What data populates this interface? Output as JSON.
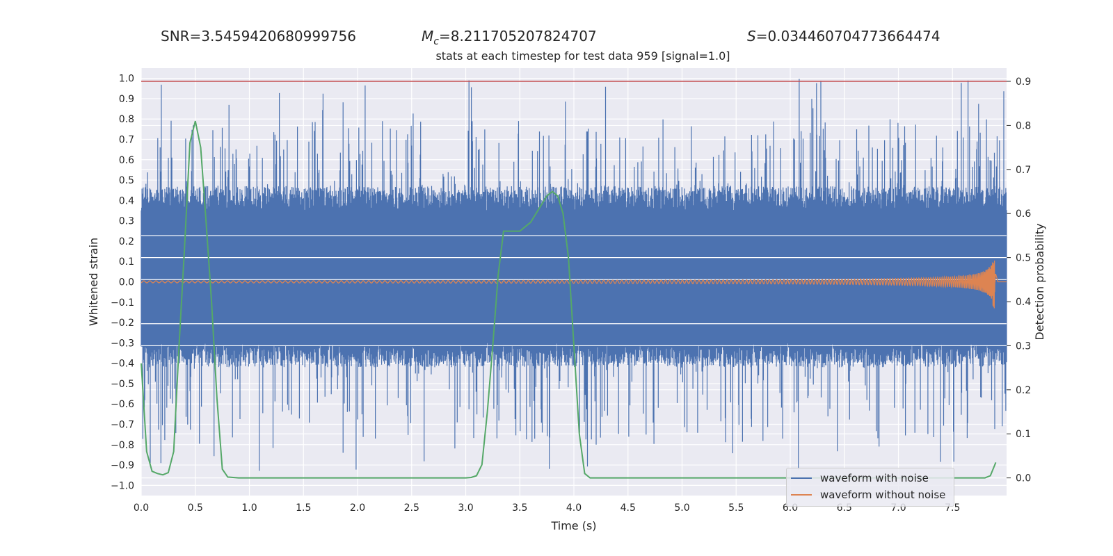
{
  "header": {
    "snr": "SNR=3.5459420680999756",
    "mc_symbol": "M",
    "mc_sub": "c",
    "mc_value": "=8.211705207824707",
    "s_symbol": "S",
    "s_value": "=0.034460704773664474"
  },
  "chart_data": {
    "type": "line",
    "subtitle": "stats at each timestep for test data 959 [signal=1.0]",
    "xlabel": "Time (s)",
    "ylabel_left": "Whitened strain",
    "ylabel_right": "Detection probability",
    "xlim": [
      0.0,
      8.0
    ],
    "ylim_left": [
      -1.05,
      1.05
    ],
    "ylim_right": [
      -0.04,
      0.93
    ],
    "x_ticks": [
      "0.0",
      "0.5",
      "1.0",
      "1.5",
      "2.0",
      "2.5",
      "3.0",
      "3.5",
      "4.0",
      "4.5",
      "5.0",
      "5.5",
      "6.0",
      "6.5",
      "7.0",
      "7.5"
    ],
    "y_left_ticks": [
      "1.0",
      "0.9",
      "0.8",
      "0.7",
      "0.6",
      "0.5",
      "0.4",
      "0.3",
      "0.2",
      "0.1",
      "0.0",
      "−0.1",
      "−0.2",
      "−0.3",
      "−0.4",
      "−0.5",
      "−0.6",
      "−0.7",
      "−0.8",
      "−0.9",
      "−1.0"
    ],
    "y_right_ticks": [
      "0.9",
      "0.8",
      "0.7",
      "0.6",
      "0.5",
      "0.4",
      "0.3",
      "0.2",
      "0.1",
      "0.0"
    ],
    "grid": true,
    "legend_position": "bottom-right",
    "threshold_line": {
      "y": 0.9,
      "axis": "right",
      "color": "#c44e52"
    },
    "series": [
      {
        "name": "waveform with noise",
        "axis": "left",
        "color": "#4c72b0",
        "description_values": {
          "dense_band": [
            -0.3,
            0.35
          ],
          "max": 1.0,
          "min": -0.93
        }
      },
      {
        "name": "waveform without noise",
        "axis": "left",
        "color": "#dd8452",
        "chirp_end_time": 7.9,
        "amplitude_start": 0.005,
        "amplitude_peak": 0.13
      },
      {
        "axis": "right",
        "color": "#55a868",
        "x": [
          0.0,
          0.05,
          0.1,
          0.15,
          0.2,
          0.25,
          0.3,
          0.35,
          0.4,
          0.45,
          0.5,
          0.55,
          0.6,
          0.65,
          0.7,
          0.75,
          0.8,
          0.9,
          1.0,
          3.0,
          3.05,
          3.1,
          3.15,
          3.2,
          3.25,
          3.3,
          3.35,
          3.4,
          3.45,
          3.5,
          3.55,
          3.6,
          3.65,
          3.7,
          3.75,
          3.8,
          3.85,
          3.9,
          3.95,
          4.0,
          4.05,
          4.1,
          4.15,
          4.2,
          4.3,
          7.8,
          7.85,
          7.9
        ],
        "values": [
          0.26,
          0.06,
          0.015,
          0.01,
          0.007,
          0.012,
          0.06,
          0.3,
          0.52,
          0.76,
          0.81,
          0.75,
          0.58,
          0.4,
          0.18,
          0.02,
          0.002,
          0.0,
          0.0,
          0.0,
          0.001,
          0.005,
          0.03,
          0.15,
          0.3,
          0.46,
          0.56,
          0.56,
          0.56,
          0.56,
          0.57,
          0.58,
          0.6,
          0.62,
          0.64,
          0.65,
          0.64,
          0.6,
          0.5,
          0.3,
          0.1,
          0.01,
          0.0,
          0.0,
          0.0,
          0.0,
          0.005,
          0.035
        ]
      }
    ]
  }
}
